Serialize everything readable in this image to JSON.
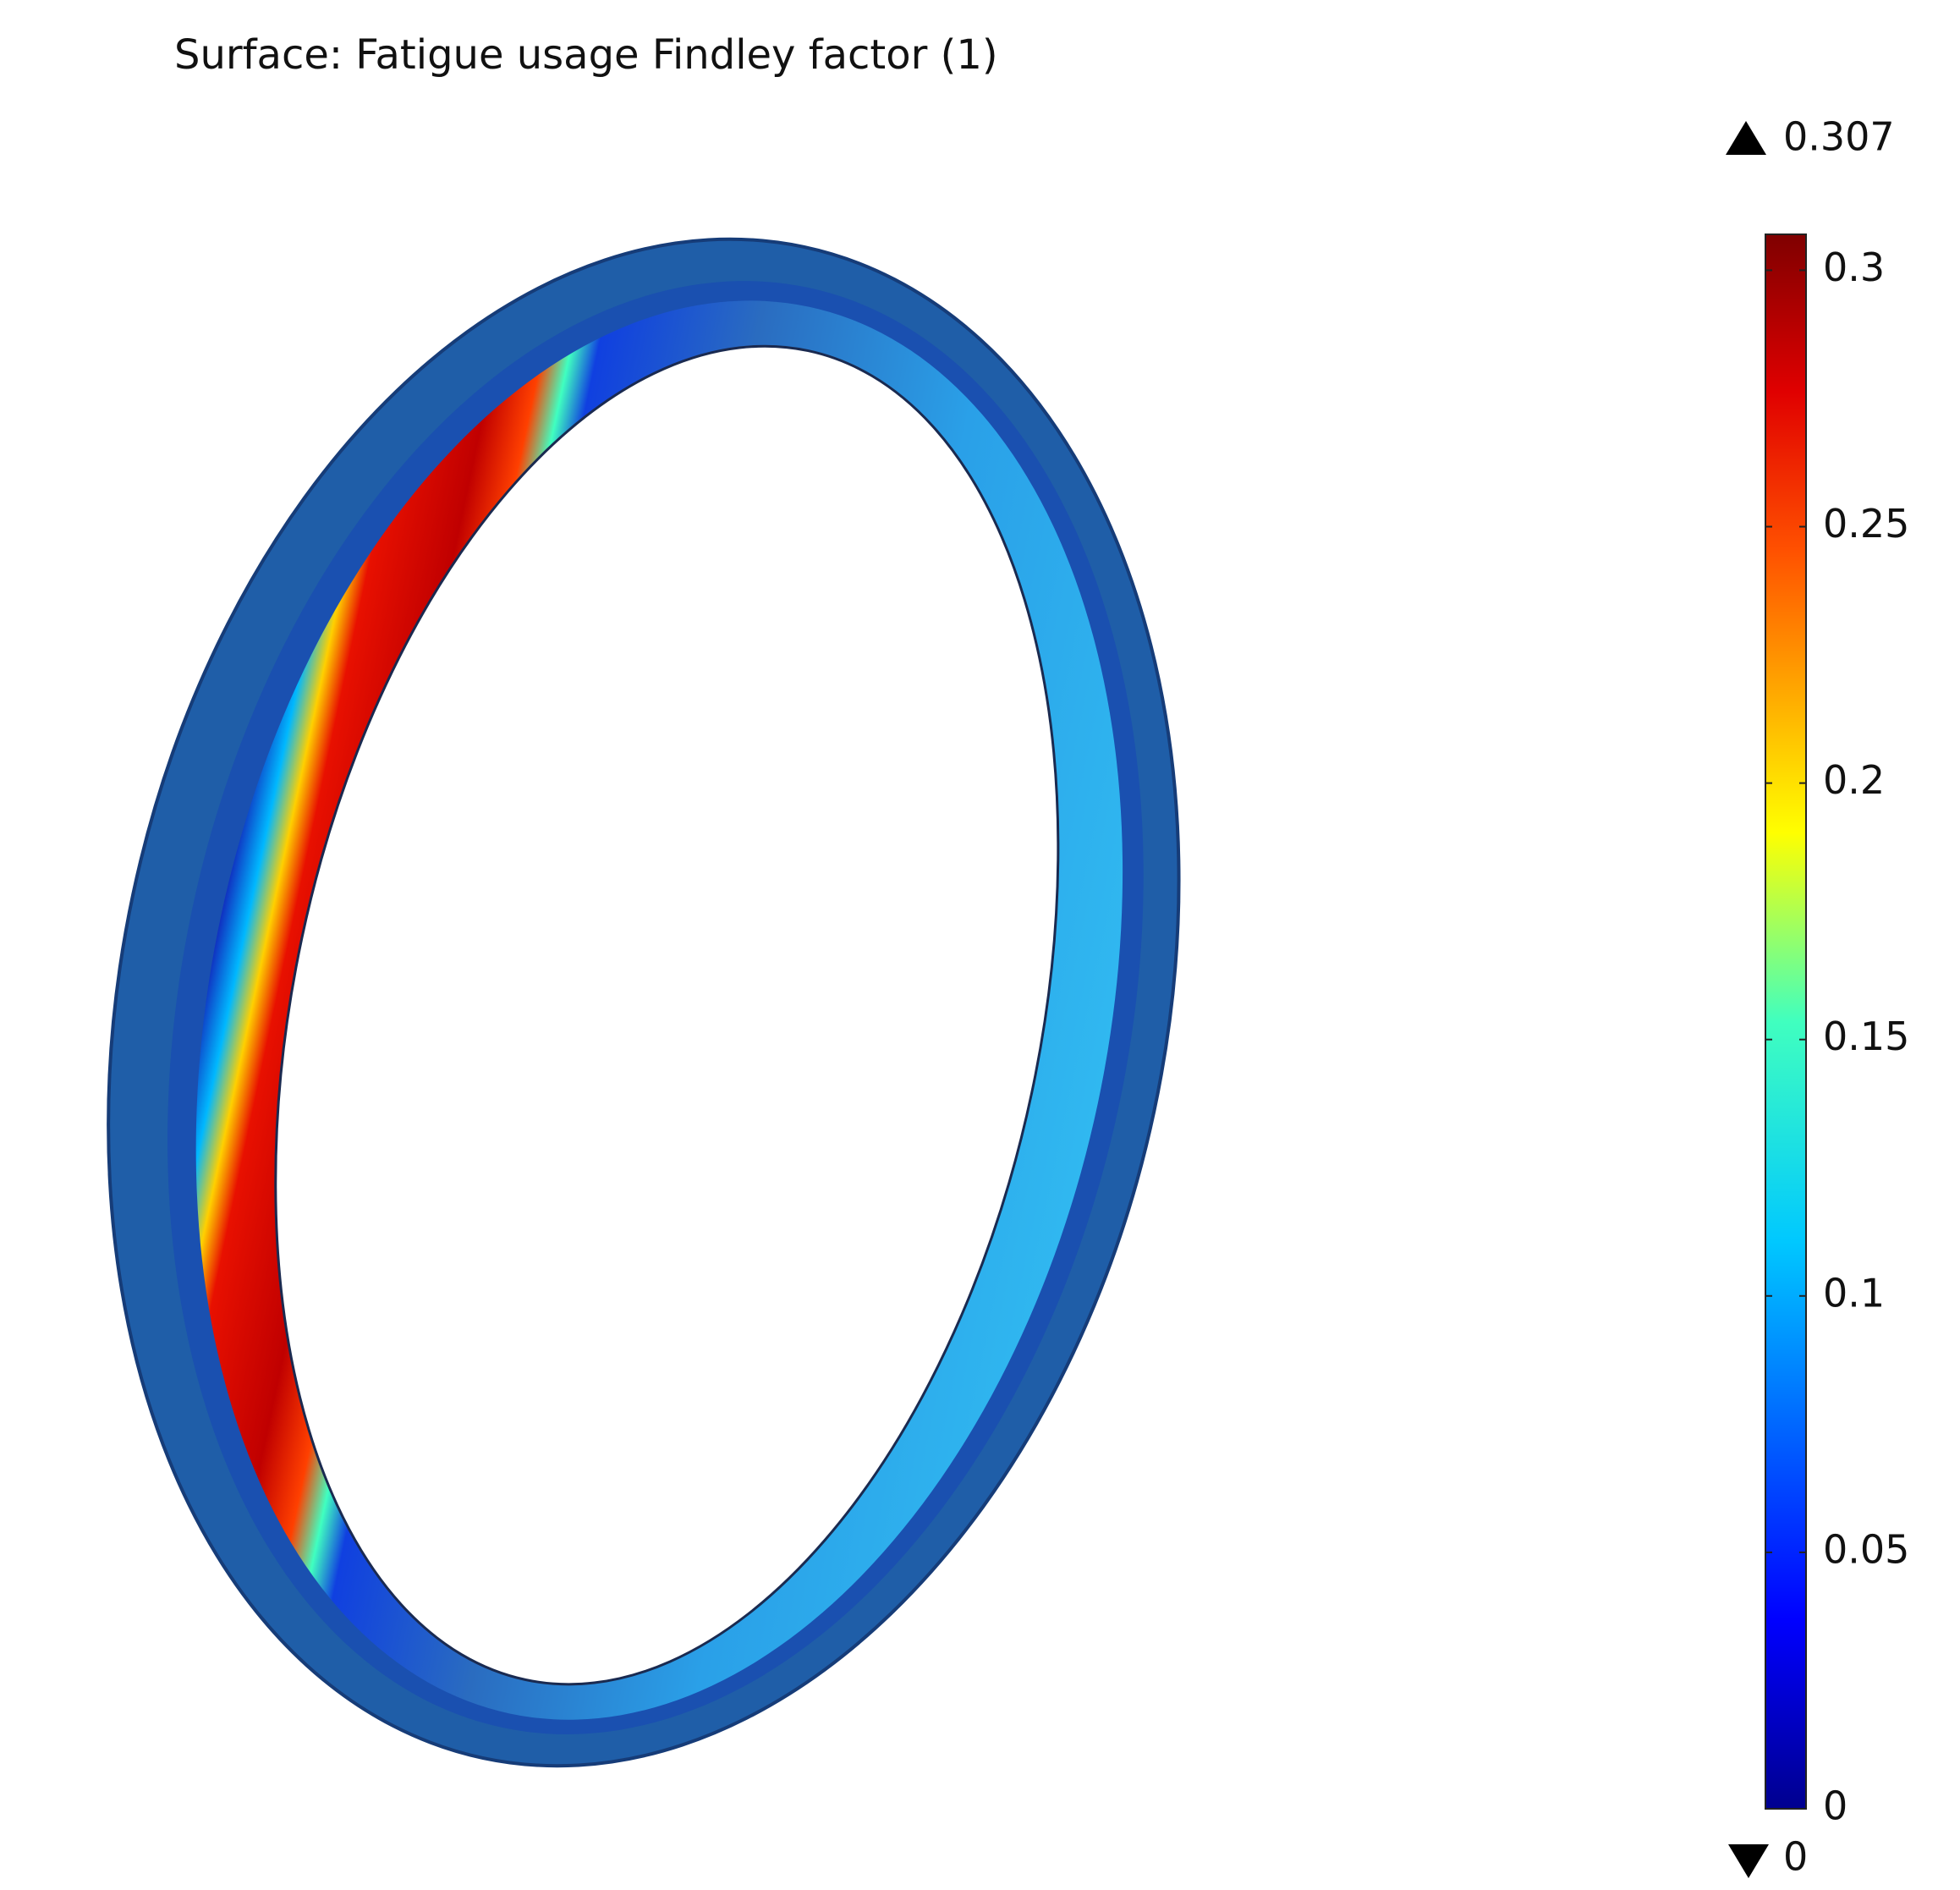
{
  "chart_data": {
    "type": "surface",
    "title": "Surface: Fatigue usage Findley factor (1)",
    "ylim": [
      0,
      0.307
    ],
    "yticks": [
      0,
      0.05,
      0.1,
      0.15,
      0.2,
      0.25,
      0.3
    ]
  }
}
